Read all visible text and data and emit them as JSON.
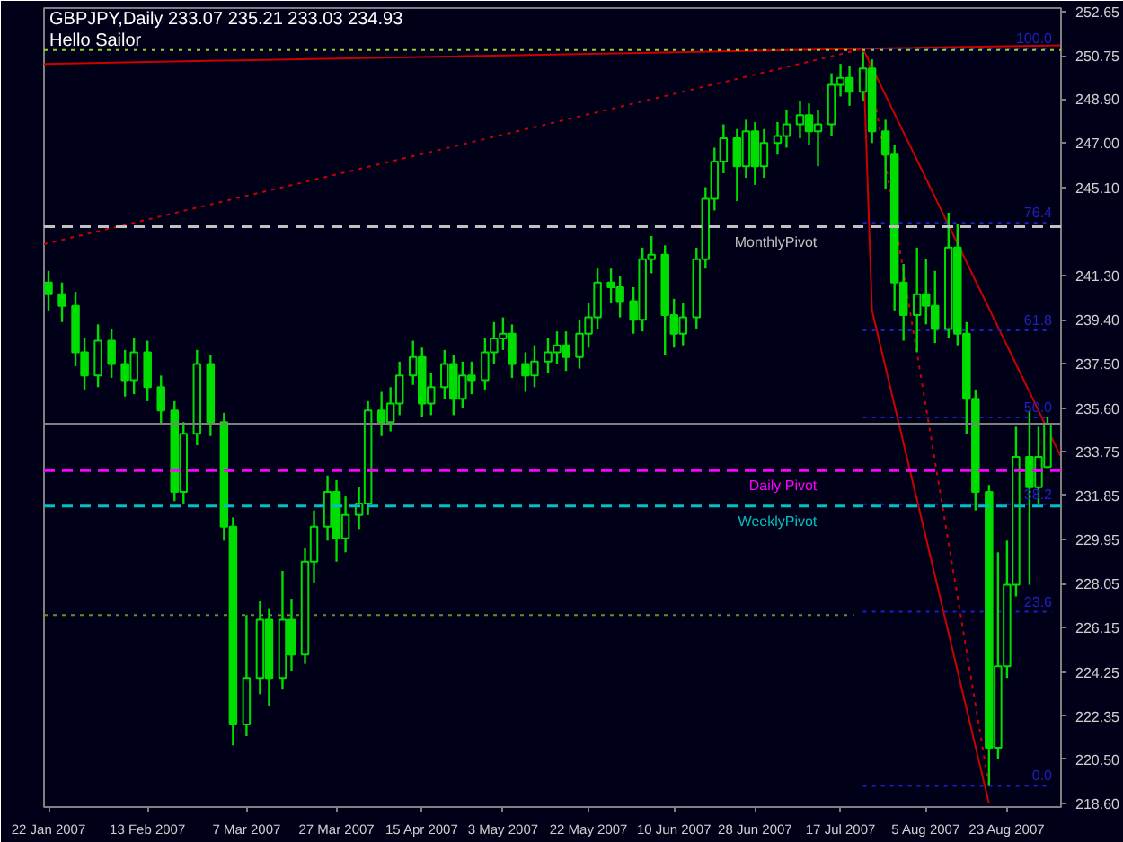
{
  "chart_data": {
    "type": "candlestick",
    "title": "GBPJPY,Daily  233.07 235.21 233.03 234.93",
    "subtitle": "Hello Sailor",
    "color": "#00dd00",
    "x": [
      "2007-01-22",
      "2007-01-25",
      "2007-01-28",
      "2007-01-30",
      "2007-02-02",
      "2007-02-05",
      "2007-02-08",
      "2007-02-10",
      "2007-02-13",
      "2007-02-16",
      "2007-02-19",
      "2007-02-21",
      "2007-02-24",
      "2007-02-27",
      "2007-03-02",
      "2007-03-04",
      "2007-03-07",
      "2007-03-10",
      "2007-03-12",
      "2007-03-15",
      "2007-03-17",
      "2007-03-20",
      "2007-03-22",
      "2007-03-25",
      "2007-03-27",
      "2007-03-29",
      "2007-04-01",
      "2007-04-03",
      "2007-04-06",
      "2007-04-08",
      "2007-04-10",
      "2007-04-13",
      "2007-04-15",
      "2007-04-17",
      "2007-04-20",
      "2007-04-22",
      "2007-04-24",
      "2007-04-26",
      "2007-04-29",
      "2007-05-01",
      "2007-05-03",
      "2007-05-05",
      "2007-05-08",
      "2007-05-10",
      "2007-05-13",
      "2007-05-15",
      "2007-05-17",
      "2007-05-20",
      "2007-05-22",
      "2007-05-24",
      "2007-05-27",
      "2007-05-29",
      "2007-06-01",
      "2007-06-03",
      "2007-06-05",
      "2007-06-08",
      "2007-06-10",
      "2007-06-12",
      "2007-06-15",
      "2007-06-17",
      "2007-06-19",
      "2007-06-21",
      "2007-06-24",
      "2007-06-26",
      "2007-06-28",
      "2007-06-30",
      "2007-07-03",
      "2007-07-05",
      "2007-07-08",
      "2007-07-10",
      "2007-07-12",
      "2007-07-15",
      "2007-07-17",
      "2007-07-19",
      "2007-07-22",
      "2007-07-24",
      "2007-07-27",
      "2007-07-29",
      "2007-07-31",
      "2007-08-03",
      "2007-08-05",
      "2007-08-07",
      "2007-08-10",
      "2007-08-12",
      "2007-08-14",
      "2007-08-16",
      "2007-08-19",
      "2007-08-21",
      "2007-08-23",
      "2007-08-25",
      "2007-08-28",
      "2007-08-30",
      "2007-09-01"
    ],
    "ohlc": [
      [
        241.0,
        241.5,
        239.8,
        240.5
      ],
      [
        240.5,
        241.0,
        239.3,
        240.0
      ],
      [
        240.0,
        240.6,
        237.4,
        238.0
      ],
      [
        238.0,
        238.6,
        236.4,
        237.0
      ],
      [
        237.0,
        239.2,
        236.5,
        238.5
      ],
      [
        238.5,
        239.0,
        236.9,
        237.5
      ],
      [
        237.5,
        238.1,
        236.1,
        236.8
      ],
      [
        236.8,
        238.6,
        236.2,
        238.0
      ],
      [
        238.0,
        238.5,
        235.9,
        236.5
      ],
      [
        236.5,
        237.0,
        234.9,
        235.5
      ],
      [
        235.5,
        235.9,
        231.6,
        232.0
      ],
      [
        232.0,
        235.0,
        231.5,
        234.5
      ],
      [
        234.5,
        238.1,
        234.0,
        237.5
      ],
      [
        237.5,
        237.9,
        234.4,
        235.0
      ],
      [
        235.0,
        235.4,
        229.9,
        230.5
      ],
      [
        230.5,
        230.9,
        221.1,
        222.0
      ],
      [
        222.0,
        226.7,
        221.5,
        224.0
      ],
      [
        224.0,
        227.3,
        223.3,
        226.5
      ],
      [
        226.5,
        227.0,
        222.8,
        224.0
      ],
      [
        224.0,
        228.6,
        223.5,
        226.5
      ],
      [
        226.5,
        227.4,
        224.3,
        225.0
      ],
      [
        225.0,
        229.6,
        224.6,
        229.0
      ],
      [
        229.0,
        231.2,
        228.1,
        230.5
      ],
      [
        230.5,
        232.7,
        229.9,
        232.0
      ],
      [
        232.0,
        232.5,
        229.0,
        230.0
      ],
      [
        230.0,
        231.8,
        229.4,
        231.0
      ],
      [
        231.0,
        232.2,
        230.4,
        231.5
      ],
      [
        231.5,
        235.9,
        231.0,
        235.5
      ],
      [
        235.5,
        236.3,
        234.4,
        235.0
      ],
      [
        235.0,
        236.5,
        234.6,
        235.8
      ],
      [
        235.8,
        237.6,
        235.3,
        237.0
      ],
      [
        237.0,
        238.5,
        236.6,
        237.8
      ],
      [
        237.8,
        238.2,
        235.2,
        235.8
      ],
      [
        235.8,
        237.1,
        235.3,
        236.5
      ],
      [
        236.5,
        238.1,
        236.0,
        237.5
      ],
      [
        237.5,
        237.9,
        235.3,
        236.0
      ],
      [
        236.0,
        237.6,
        235.6,
        237.0
      ],
      [
        237.0,
        237.6,
        236.2,
        236.8
      ],
      [
        236.8,
        238.6,
        236.4,
        238.0
      ],
      [
        238.0,
        239.3,
        237.5,
        238.6
      ],
      [
        238.6,
        239.5,
        238.1,
        238.8
      ],
      [
        238.8,
        239.2,
        236.9,
        237.5
      ],
      [
        237.5,
        238.0,
        236.3,
        237.0
      ],
      [
        237.0,
        238.3,
        236.5,
        237.6
      ],
      [
        237.6,
        238.6,
        237.1,
        238.0
      ],
      [
        238.0,
        238.9,
        237.5,
        238.3
      ],
      [
        238.3,
        238.9,
        237.2,
        237.8
      ],
      [
        237.8,
        239.4,
        237.3,
        238.8
      ],
      [
        238.8,
        240.1,
        238.2,
        239.5
      ],
      [
        239.5,
        241.6,
        239.0,
        241.0
      ],
      [
        241.0,
        241.6,
        240.1,
        240.8
      ],
      [
        240.8,
        241.3,
        239.5,
        240.2
      ],
      [
        240.2,
        240.8,
        238.8,
        239.4
      ],
      [
        239.4,
        242.5,
        238.9,
        242.0
      ],
      [
        242.0,
        243.0,
        241.4,
        242.2
      ],
      [
        242.2,
        242.6,
        237.9,
        239.6
      ],
      [
        239.6,
        240.3,
        238.2,
        238.8
      ],
      [
        238.8,
        240.1,
        238.3,
        239.5
      ],
      [
        239.5,
        242.5,
        239.0,
        242.0
      ],
      [
        242.0,
        245.1,
        241.6,
        244.6
      ],
      [
        244.6,
        246.8,
        244.1,
        246.2
      ],
      [
        246.2,
        247.8,
        245.7,
        247.2
      ],
      [
        247.2,
        247.6,
        244.5,
        246.0
      ],
      [
        246.0,
        248.0,
        245.5,
        247.5
      ],
      [
        247.5,
        247.9,
        245.2,
        246.0
      ],
      [
        246.0,
        247.6,
        245.5,
        247.0
      ],
      [
        247.0,
        247.9,
        246.5,
        247.3
      ],
      [
        247.3,
        248.4,
        246.8,
        247.8
      ],
      [
        247.8,
        248.8,
        247.2,
        248.2
      ],
      [
        248.2,
        248.7,
        246.9,
        247.5
      ],
      [
        247.5,
        248.4,
        246.0,
        247.8
      ],
      [
        247.8,
        250.0,
        247.3,
        249.5
      ],
      [
        249.5,
        250.4,
        249.0,
        249.8
      ],
      [
        249.8,
        250.3,
        248.6,
        249.2
      ],
      [
        249.2,
        250.9,
        248.8,
        250.2
      ],
      [
        250.2,
        250.6,
        247.0,
        247.5
      ],
      [
        247.5,
        248.0,
        245.0,
        246.5
      ],
      [
        246.5,
        246.9,
        239.8,
        241.0
      ],
      [
        241.0,
        241.8,
        238.5,
        239.6
      ],
      [
        239.6,
        242.5,
        238.0,
        240.5
      ],
      [
        240.5,
        242.0,
        239.2,
        240.0
      ],
      [
        240.0,
        241.5,
        238.4,
        239.0
      ],
      [
        239.0,
        244.0,
        238.6,
        242.5
      ],
      [
        242.5,
        243.5,
        238.3,
        238.8
      ],
      [
        238.8,
        239.3,
        234.5,
        236.0
      ],
      [
        236.0,
        236.4,
        231.2,
        232.0
      ],
      [
        232.0,
        232.3,
        219.36,
        221.0
      ],
      [
        221.0,
        229.4,
        220.5,
        224.5
      ],
      [
        224.5,
        229.9,
        224.0,
        228.0
      ],
      [
        228.0,
        234.8,
        227.5,
        233.5
      ],
      [
        233.5,
        235.5,
        228.0,
        232.2
      ],
      [
        232.2,
        234.8,
        231.5,
        233.5
      ],
      [
        233.07,
        235.21,
        233.03,
        234.93
      ]
    ],
    "series": [
      {
        "type": "line",
        "x": [
          "2007-01-21",
          "2007-07-22",
          "2007-09-04"
        ],
        "values": [
          250.4,
          251.05,
          251.2
        ],
        "color": "#cc0000",
        "line_style": "solid"
      },
      {
        "type": "line",
        "x": [
          "2007-01-21",
          "2007-07-22"
        ],
        "values": [
          242.65,
          251.05
        ],
        "color": "#cc0000",
        "line_style": "dotted"
      },
      {
        "type": "line",
        "x": [
          "2007-07-22",
          "2007-09-04"
        ],
        "values": [
          251.05,
          233.5
        ],
        "color": "#cc0000",
        "line_style": "solid"
      },
      {
        "type": "line",
        "x": [
          "2007-07-22",
          "2007-07-24",
          "2007-08-19"
        ],
        "values": [
          251.05,
          239.8,
          218.6
        ],
        "color": "#cc0000",
        "line_style": "solid"
      },
      {
        "type": "line",
        "x": [
          "2007-07-23",
          "2007-08-19"
        ],
        "values": [
          250.75,
          219.36
        ],
        "color": "#cc0000",
        "line_style": "dotted"
      },
      {
        "type": "line",
        "x": [
          "2007-01-21",
          "2007-07-20"
        ],
        "values": [
          226.7,
          226.7
        ],
        "color": "#6b8e23",
        "line_style": "dotted"
      },
      {
        "type": "line",
        "name": "100.0",
        "x": [
          "2007-07-22",
          "2007-09-02"
        ],
        "values": [
          251.05,
          251.05
        ],
        "color": "#2020c0",
        "line_style": "dotted"
      },
      {
        "type": "line",
        "name": "76.4",
        "x": [
          "2007-07-22",
          "2007-09-02"
        ],
        "values": [
          243.57,
          243.57
        ],
        "color": "#2020c0",
        "line_style": "dotted"
      },
      {
        "type": "line",
        "name": "61.8",
        "x": [
          "2007-07-22",
          "2007-09-02"
        ],
        "values": [
          238.94,
          238.94
        ],
        "color": "#2020c0",
        "line_style": "dotted"
      },
      {
        "type": "line",
        "name": "50.0",
        "x": [
          "2007-07-22",
          "2007-09-02"
        ],
        "values": [
          235.2,
          235.2
        ],
        "color": "#2020c0",
        "line_style": "dotted"
      },
      {
        "type": "line",
        "name": "38.2",
        "x": [
          "2007-07-22",
          "2007-09-02"
        ],
        "values": [
          231.47,
          231.47
        ],
        "color": "#2020c0",
        "line_style": "dotted"
      },
      {
        "type": "line",
        "name": "23.6",
        "x": [
          "2007-07-22",
          "2007-09-02"
        ],
        "values": [
          226.84,
          226.84
        ],
        "color": "#2020c0",
        "line_style": "dotted"
      },
      {
        "type": "line",
        "name": "0.0",
        "x": [
          "2007-07-22",
          "2007-09-02"
        ],
        "values": [
          219.36,
          219.36
        ],
        "color": "#2020c0",
        "line_style": "dotted"
      }
    ],
    "ref_lines": [
      {
        "axis": "y",
        "value": 251.0,
        "color": "#9acd32",
        "line_style": "dotted"
      },
      {
        "axis": "y",
        "value": 243.4,
        "label": "MonthlyPivot",
        "color": "#c0c0c0",
        "line_style": "dashed"
      },
      {
        "axis": "y",
        "value": 234.93,
        "color": "#808080",
        "line_style": "solid"
      },
      {
        "axis": "y",
        "value": 232.91,
        "label": "Daily Pivot",
        "color": "#ff00ff",
        "line_style": "dashed"
      },
      {
        "axis": "y",
        "value": 231.39,
        "label": "WeeklyPivot",
        "color": "#00c0c0",
        "line_style": "dashed"
      }
    ],
    "xlim": [
      "2007-01-21",
      "2007-09-04"
    ],
    "ylim": [
      218.45,
      252.8
    ],
    "xticks": [
      {
        "value": "2007-01-22",
        "label": "22 Jan 2007"
      },
      {
        "value": "2007-02-13",
        "label": "13 Feb 2007"
      },
      {
        "value": "2007-03-07",
        "label": "7 Mar 2007"
      },
      {
        "value": "2007-03-27",
        "label": "27 Mar 2007"
      },
      {
        "value": "2007-04-15",
        "label": "15 Apr 2007"
      },
      {
        "value": "2007-05-03",
        "label": "3 May 2007"
      },
      {
        "value": "2007-05-22",
        "label": "22 May 2007"
      },
      {
        "value": "2007-06-10",
        "label": "10 Jun 2007"
      },
      {
        "value": "2007-06-28",
        "label": "28 Jun 2007"
      },
      {
        "value": "2007-07-17",
        "label": "17 Jul 2007"
      },
      {
        "value": "2007-08-05",
        "label": "5 Aug 2007"
      },
      {
        "value": "2007-08-23",
        "label": "23 Aug 2007"
      }
    ],
    "yticks": [
      {
        "value": 218.6,
        "label": "218.60"
      },
      {
        "value": 220.5,
        "label": "220.50"
      },
      {
        "value": 222.35,
        "label": "222.35"
      },
      {
        "value": 224.25,
        "label": "224.25"
      },
      {
        "value": 226.15,
        "label": "226.15"
      },
      {
        "value": 228.05,
        "label": "228.05"
      },
      {
        "value": 229.95,
        "label": "229.95"
      },
      {
        "value": 231.85,
        "label": "231.85"
      },
      {
        "value": 233.75,
        "label": "233.75"
      },
      {
        "value": 235.6,
        "label": "235.60"
      },
      {
        "value": 237.5,
        "label": "237.50"
      },
      {
        "value": 239.4,
        "label": "239.40"
      },
      {
        "value": 241.3,
        "label": "241.30"
      },
      {
        "value": 245.1,
        "label": "245.10"
      },
      {
        "value": 247.0,
        "label": "247.00"
      },
      {
        "value": 248.9,
        "label": "248.90"
      },
      {
        "value": 250.75,
        "label": "250.75"
      },
      {
        "value": 252.65,
        "label": "252.65"
      }
    ],
    "grid": false
  }
}
